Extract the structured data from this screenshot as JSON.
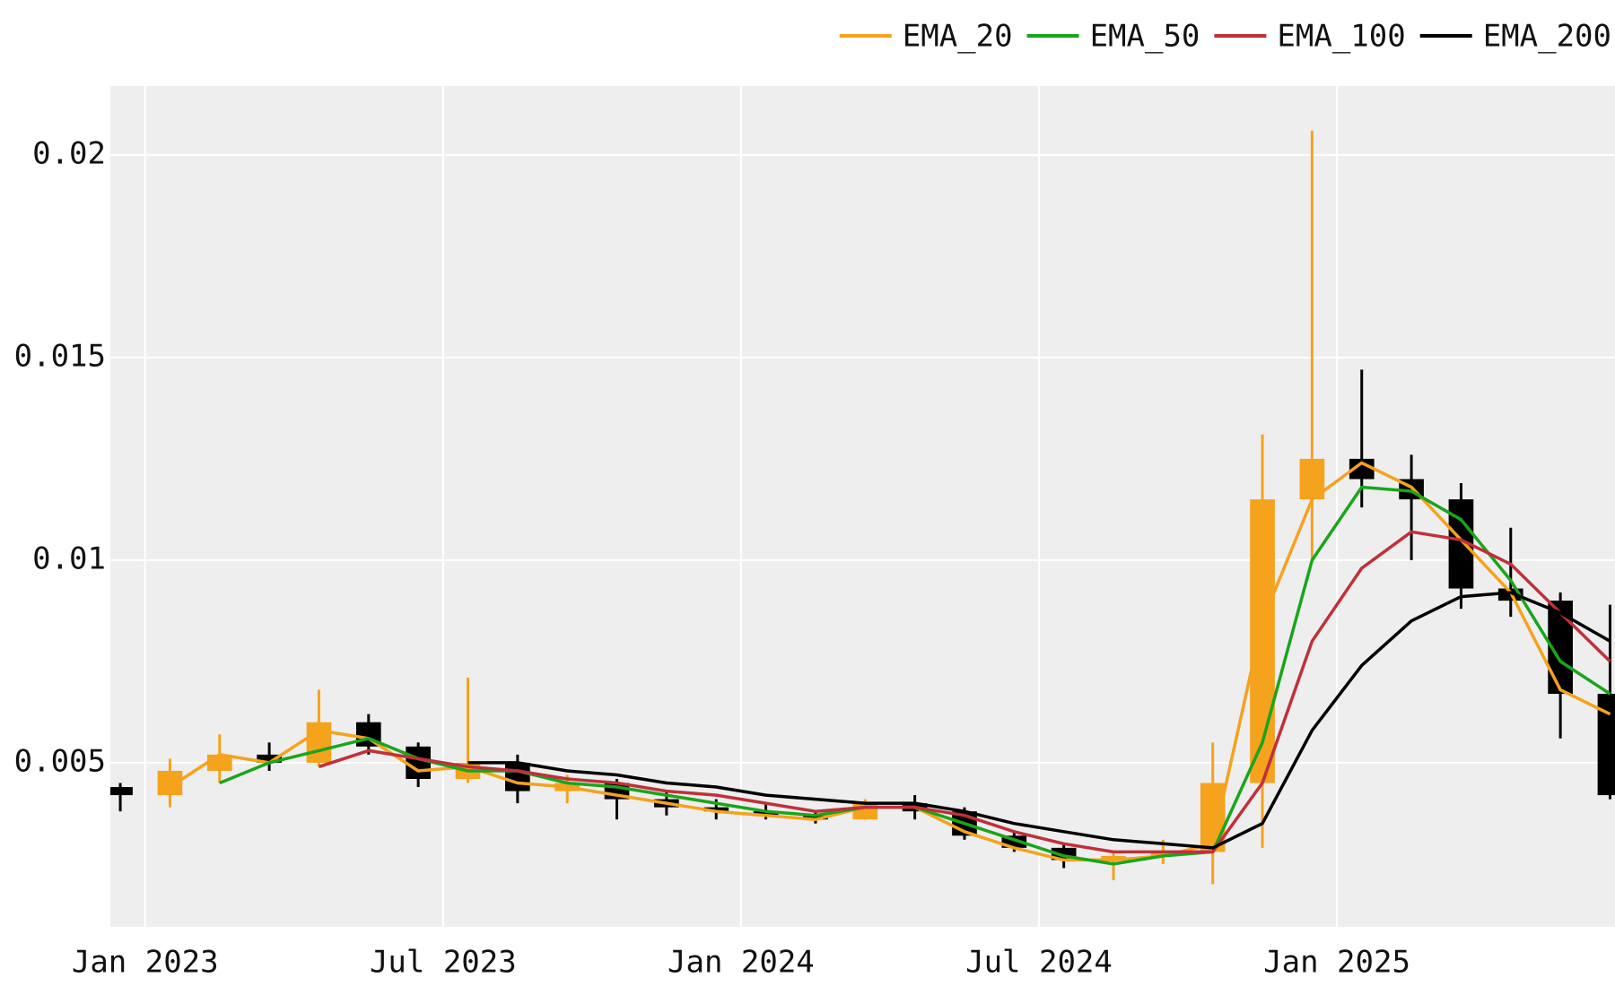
{
  "chart_data": {
    "type": "candlestick",
    "x": [
      "2022-12",
      "2023-01",
      "2023-02",
      "2023-03",
      "2023-04",
      "2023-05",
      "2023-06",
      "2023-07",
      "2023-08",
      "2023-09",
      "2023-10",
      "2023-11",
      "2023-12",
      "2024-01",
      "2024-02",
      "2024-03",
      "2024-04",
      "2024-05",
      "2024-06",
      "2024-07",
      "2024-08",
      "2024-09",
      "2024-10",
      "2024-11",
      "2024-12",
      "2025-01",
      "2025-02",
      "2025-03",
      "2025-04",
      "2025-05",
      "2025-06"
    ],
    "open": [
      0.0044,
      0.0042,
      0.0048,
      0.0052,
      0.005,
      0.006,
      0.0054,
      0.0046,
      0.005,
      0.0043,
      0.0045,
      0.0041,
      0.0039,
      0.0038,
      0.0037,
      0.0036,
      0.004,
      0.0038,
      0.0032,
      0.0029,
      0.0026,
      0.0027,
      0.0028,
      0.0045,
      0.0115,
      0.0125,
      0.012,
      0.0115,
      0.0093,
      0.009,
      0.0067
    ],
    "high": [
      0.0045,
      0.0051,
      0.0057,
      0.0055,
      0.0068,
      0.0062,
      0.0055,
      0.0071,
      0.0052,
      0.0047,
      0.0046,
      0.0043,
      0.0041,
      0.004,
      0.0038,
      0.0041,
      0.0042,
      0.0039,
      0.0033,
      0.003,
      0.0028,
      0.0031,
      0.0055,
      0.0131,
      0.0206,
      0.0147,
      0.0126,
      0.0119,
      0.0108,
      0.0092,
      0.0089
    ],
    "low": [
      0.0038,
      0.0039,
      0.0045,
      0.0048,
      0.0049,
      0.0052,
      0.0044,
      0.0045,
      0.004,
      0.004,
      0.0036,
      0.0037,
      0.0036,
      0.0036,
      0.0035,
      0.0036,
      0.0036,
      0.0031,
      0.0028,
      0.0024,
      0.0021,
      0.0025,
      0.002,
      0.0029,
      0.01,
      0.0113,
      0.01,
      0.0088,
      0.0086,
      0.0056,
      0.0041
    ],
    "close": [
      0.0042,
      0.0048,
      0.0052,
      0.005,
      0.006,
      0.0054,
      0.0046,
      0.005,
      0.0043,
      0.0045,
      0.0041,
      0.0039,
      0.0038,
      0.0037,
      0.0036,
      0.004,
      0.0038,
      0.0032,
      0.0029,
      0.0026,
      0.0027,
      0.0028,
      0.0045,
      0.0115,
      0.0125,
      0.012,
      0.0115,
      0.0093,
      0.009,
      0.0067,
      0.0042
    ],
    "up_color": "#f5a21d",
    "down_color": "#000000",
    "series": [
      {
        "name": "EMA_20",
        "color": "#f5a21d",
        "values": [
          null,
          0.0044,
          0.0052,
          0.005,
          0.0058,
          0.0056,
          0.0048,
          0.0049,
          0.0045,
          0.0044,
          0.0042,
          0.004,
          0.0038,
          0.0037,
          0.0036,
          0.0039,
          0.0039,
          0.0033,
          0.0029,
          0.0026,
          0.0026,
          0.0027,
          0.003,
          0.0085,
          0.0115,
          0.0124,
          0.0118,
          0.0105,
          0.0092,
          0.0068,
          0.0062
        ]
      },
      {
        "name": "EMA_50",
        "color": "#1aa51a",
        "values": [
          null,
          null,
          0.0045,
          0.005,
          0.0053,
          0.0056,
          0.0051,
          0.0048,
          0.0048,
          0.0045,
          0.0044,
          0.0042,
          0.004,
          0.0038,
          0.0037,
          0.0039,
          0.0039,
          0.0035,
          0.0031,
          0.0027,
          0.0025,
          0.0027,
          0.0028,
          0.0055,
          0.01,
          0.0118,
          0.0117,
          0.011,
          0.0095,
          0.0075,
          0.0067
        ]
      },
      {
        "name": "EMA_100",
        "color": "#c0303b",
        "values": [
          null,
          null,
          null,
          null,
          0.0049,
          0.0053,
          0.0051,
          0.0049,
          0.0048,
          0.0046,
          0.0045,
          0.0043,
          0.0042,
          0.004,
          0.0038,
          0.0039,
          0.0039,
          0.0037,
          0.0033,
          0.003,
          0.0028,
          0.0028,
          0.0028,
          0.0045,
          0.008,
          0.0098,
          0.0107,
          0.0105,
          0.0099,
          0.0087,
          0.0075
        ]
      },
      {
        "name": "EMA_200",
        "color": "#000000",
        "values": [
          null,
          null,
          null,
          null,
          null,
          null,
          null,
          0.005,
          0.005,
          0.0048,
          0.0047,
          0.0045,
          0.0044,
          0.0042,
          0.0041,
          0.004,
          0.004,
          0.0038,
          0.0035,
          0.0033,
          0.0031,
          0.003,
          0.0029,
          0.0035,
          0.0058,
          0.0074,
          0.0085,
          0.0091,
          0.0092,
          0.0087,
          0.008
        ]
      }
    ],
    "ylim": [
      0.00095,
      0.0217
    ],
    "yticks": [
      0.005,
      0.01,
      0.015,
      0.02
    ],
    "xticks": [
      {
        "value": "2023-01",
        "label": "Jan 2023"
      },
      {
        "value": "2023-07",
        "label": "Jul 2023"
      },
      {
        "value": "2024-01",
        "label": "Jan 2024"
      },
      {
        "value": "2024-07",
        "label": "Jul 2024"
      },
      {
        "value": "2025-01",
        "label": "Jan 2025"
      }
    ],
    "grid": true,
    "legend": "top-right"
  }
}
